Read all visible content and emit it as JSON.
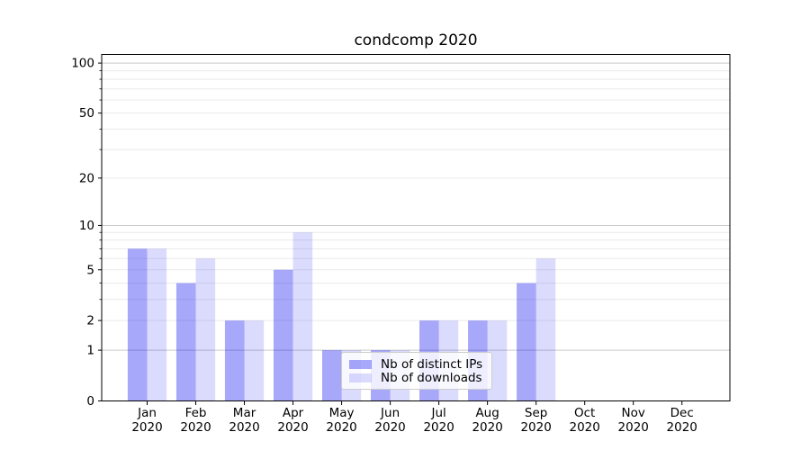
{
  "chart_data": {
    "type": "bar",
    "title": "condcomp 2020",
    "categories": [
      [
        "Jan",
        "2020"
      ],
      [
        "Feb",
        "2020"
      ],
      [
        "Mar",
        "2020"
      ],
      [
        "Apr",
        "2020"
      ],
      [
        "May",
        "2020"
      ],
      [
        "Jun",
        "2020"
      ],
      [
        "Jul",
        "2020"
      ],
      [
        "Aug",
        "2020"
      ],
      [
        "Sep",
        "2020"
      ],
      [
        "Oct",
        "2020"
      ],
      [
        "Nov",
        "2020"
      ],
      [
        "Dec",
        "2020"
      ]
    ],
    "series": [
      {
        "name": "Nb of distinct IPs",
        "color": "#0000f0",
        "alpha": 0.34,
        "values": [
          7,
          4,
          2,
          5,
          1,
          1,
          2,
          2,
          4,
          0,
          0,
          0
        ]
      },
      {
        "name": "Nb of downloads",
        "color": "#0000f0",
        "alpha": 0.14,
        "values": [
          7,
          6,
          2,
          9,
          1,
          1,
          2,
          2,
          6,
          0,
          0,
          0
        ]
      }
    ],
    "y_scale": "log10(1+x)",
    "y_tick_labels": [
      "0",
      "1",
      "2",
      "5",
      "10",
      "20",
      "50",
      "100"
    ],
    "y_ticks": [
      0,
      1,
      2,
      5,
      10,
      20,
      50,
      100
    ],
    "y_minor_ticks": [
      3,
      4,
      6,
      7,
      8,
      9,
      30,
      40,
      60,
      70,
      80,
      90
    ],
    "major_gridlines": [
      1,
      10,
      100
    ],
    "minor_gridlines": [
      2,
      3,
      4,
      5,
      6,
      7,
      8,
      9,
      20,
      30,
      40,
      50,
      60,
      70,
      80,
      90
    ],
    "ylim": [
      0,
      113
    ],
    "grid": true,
    "legend_position": "lower-center-inside",
    "colors": {
      "grid_major": "#c9c9c9",
      "grid_minor": "#eaeaea",
      "axis": "#000000",
      "tick_label": "#000000"
    }
  }
}
